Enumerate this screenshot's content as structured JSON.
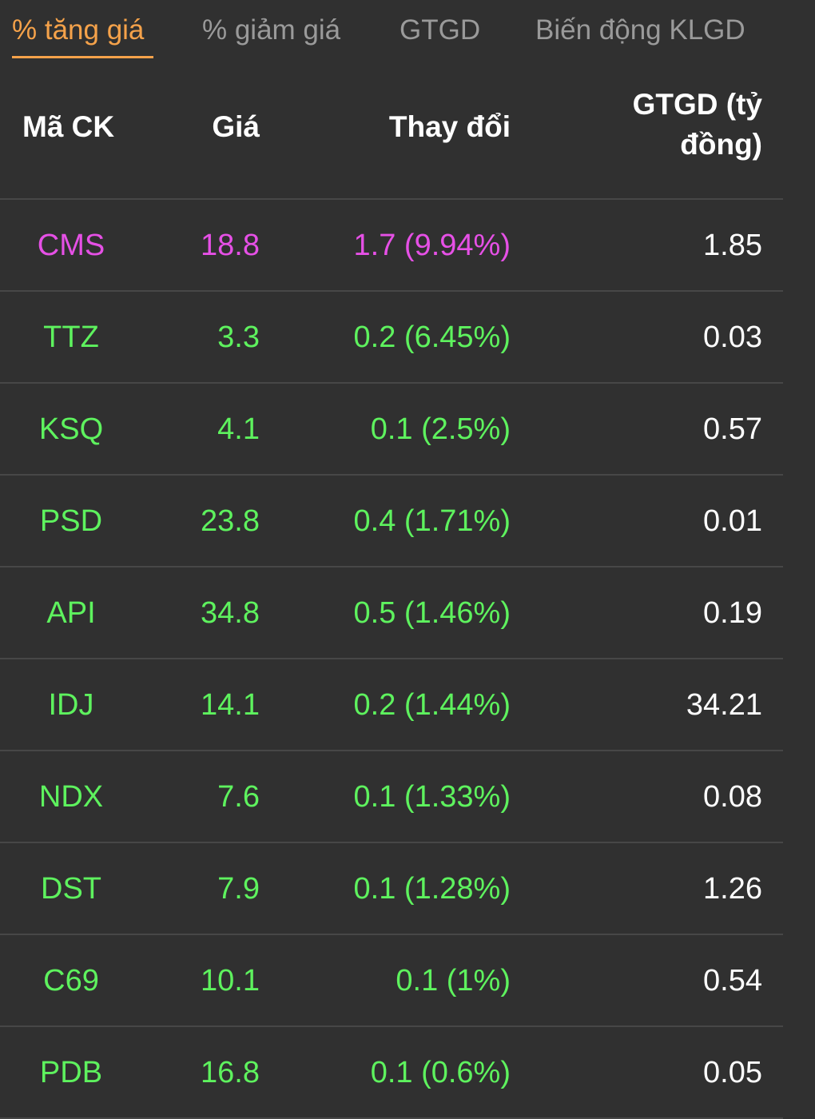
{
  "colors": {
    "background": "#303030",
    "active_tab": "#f5a24a",
    "inactive_tab": "#9a9a9a",
    "up": "#5ef25e",
    "ceiling": "#e650e6",
    "divider": "#474747"
  },
  "tabs": [
    {
      "label": "% tăng giá",
      "active": true
    },
    {
      "label": "% giảm giá",
      "active": false
    },
    {
      "label": "GTGD",
      "active": false
    },
    {
      "label": "Biến động KLGD",
      "active": false
    }
  ],
  "table": {
    "headers": {
      "code": "Mã CK",
      "price": "Giá",
      "change": "Thay đổi",
      "value": "GTGD (tỷ đồng)"
    },
    "rows": [
      {
        "code": "CMS",
        "price": "18.8",
        "change": "1.7 (9.94%)",
        "value": "1.85",
        "status": "ceiling"
      },
      {
        "code": "TTZ",
        "price": "3.3",
        "change": "0.2 (6.45%)",
        "value": "0.03",
        "status": "up"
      },
      {
        "code": "KSQ",
        "price": "4.1",
        "change": "0.1 (2.5%)",
        "value": "0.57",
        "status": "up"
      },
      {
        "code": "PSD",
        "price": "23.8",
        "change": "0.4 (1.71%)",
        "value": "0.01",
        "status": "up"
      },
      {
        "code": "API",
        "price": "34.8",
        "change": "0.5 (1.46%)",
        "value": "0.19",
        "status": "up"
      },
      {
        "code": "IDJ",
        "price": "14.1",
        "change": "0.2 (1.44%)",
        "value": "34.21",
        "status": "up"
      },
      {
        "code": "NDX",
        "price": "7.6",
        "change": "0.1 (1.33%)",
        "value": "0.08",
        "status": "up"
      },
      {
        "code": "DST",
        "price": "7.9",
        "change": "0.1 (1.28%)",
        "value": "1.26",
        "status": "up"
      },
      {
        "code": "C69",
        "price": "10.1",
        "change": "0.1 (1%)",
        "value": "0.54",
        "status": "up"
      },
      {
        "code": "PDB",
        "price": "16.8",
        "change": "0.1 (0.6%)",
        "value": "0.05",
        "status": "up"
      }
    ]
  }
}
